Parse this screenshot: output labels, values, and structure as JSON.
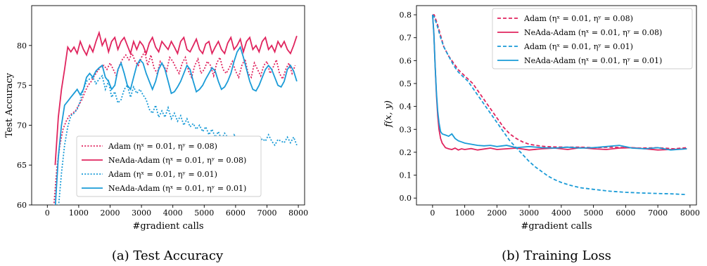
{
  "colors": {
    "adam_large": "#e0245e",
    "adam_small": "#1a9bd7"
  },
  "chart_data": [
    {
      "type": "line",
      "caption": "(a) Test Accuracy",
      "xlabel": "#gradient calls",
      "ylabel": "Test Accuracy",
      "xlim": [
        -500,
        8200
      ],
      "ylim": [
        60,
        85
      ],
      "xticks": [
        0,
        1000,
        2000,
        3000,
        4000,
        5000,
        6000,
        7000,
        8000
      ],
      "yticks": [
        60,
        65,
        70,
        75,
        80
      ],
      "grid": false,
      "legend_position": "lower-right",
      "series": [
        {
          "name": "Adam (ηˣ = 0.01, ηʸ = 0.08)",
          "color": "#e0245e",
          "dash": "dotted",
          "x": [
            200,
            300,
            400,
            500,
            600,
            700,
            800,
            900,
            1000,
            1100,
            1200,
            1300,
            1400,
            1500,
            1600,
            1700,
            1800,
            1900,
            2000,
            2100,
            2200,
            2300,
            2400,
            2500,
            2600,
            2700,
            2800,
            2900,
            3000,
            3100,
            3200,
            3300,
            3400,
            3500,
            3600,
            3700,
            3800,
            3900,
            4000,
            4100,
            4200,
            4300,
            4400,
            4500,
            4600,
            4700,
            4800,
            4900,
            5000,
            5100,
            5200,
            5300,
            5400,
            5500,
            5600,
            5700,
            5800,
            5900,
            6000,
            6100,
            6200,
            6300,
            6400,
            6500,
            6600,
            6700,
            6800,
            6900,
            7000,
            7100,
            7200,
            7300,
            7400,
            7500,
            7600,
            7700,
            7800,
            7900
          ],
          "y": [
            59.5,
            64.5,
            67.5,
            69.5,
            70.5,
            71.2,
            71.5,
            71.8,
            72.5,
            73.2,
            74.2,
            75.0,
            75.5,
            76.2,
            76.8,
            77.3,
            77.5,
            77.0,
            77.8,
            77.0,
            76.2,
            77.5,
            78.3,
            78.8,
            78.2,
            79.0,
            78.0,
            77.5,
            78.5,
            79.2,
            77.5,
            78.8,
            77.2,
            76.5,
            78.0,
            77.5,
            76.8,
            78.5,
            78.0,
            77.2,
            76.5,
            77.8,
            78.5,
            76.8,
            76.0,
            77.5,
            78.3,
            76.5,
            77.0,
            78.0,
            77.5,
            76.2,
            77.8,
            78.5,
            77.0,
            76.5,
            77.2,
            78.0,
            76.8,
            76.0,
            77.5,
            78.3,
            76.5,
            76.0,
            77.8,
            77.0,
            76.2,
            77.5,
            78.0,
            76.5,
            77.3,
            78.2,
            76.5,
            75.8,
            77.0,
            77.8,
            76.5,
            77.5
          ]
        },
        {
          "name": "NeAda-Adam (ηˣ = 0.01, ηʸ = 0.08)",
          "color": "#e0245e",
          "dash": "solid",
          "x": [
            250,
            350,
            450,
            550,
            650,
            750,
            850,
            950,
            1050,
            1150,
            1250,
            1350,
            1450,
            1550,
            1650,
            1750,
            1850,
            1950,
            2050,
            2150,
            2250,
            2350,
            2450,
            2550,
            2650,
            2750,
            2850,
            2950,
            3050,
            3150,
            3250,
            3350,
            3450,
            3550,
            3650,
            3750,
            3850,
            3950,
            4050,
            4150,
            4250,
            4350,
            4450,
            4550,
            4650,
            4750,
            4850,
            4950,
            5050,
            5150,
            5250,
            5350,
            5450,
            5550,
            5650,
            5750,
            5850,
            5950,
            6050,
            6150,
            6250,
            6350,
            6450,
            6550,
            6650,
            6750,
            6850,
            6950,
            7050,
            7150,
            7250,
            7350,
            7450,
            7550,
            7650,
            7750,
            7850,
            7950
          ],
          "y": [
            65.0,
            71.0,
            74.5,
            77.0,
            79.8,
            79.2,
            79.8,
            79.0,
            80.5,
            79.5,
            78.8,
            80.0,
            79.2,
            80.5,
            81.6,
            80.0,
            80.8,
            79.2,
            80.5,
            81.0,
            79.5,
            80.5,
            81.0,
            80.0,
            79.0,
            80.5,
            79.5,
            80.5,
            80.0,
            79.0,
            80.3,
            81.0,
            79.8,
            79.2,
            80.5,
            80.0,
            79.5,
            80.5,
            79.8,
            79.0,
            80.5,
            81.0,
            79.5,
            79.2,
            80.0,
            80.8,
            79.5,
            79.0,
            80.2,
            80.5,
            79.0,
            79.8,
            80.5,
            79.5,
            79.0,
            80.3,
            81.0,
            79.5,
            80.0,
            80.8,
            79.2,
            80.5,
            81.0,
            79.5,
            80.0,
            79.2,
            80.5,
            81.0,
            79.5,
            80.0,
            79.2,
            80.5,
            79.8,
            80.5,
            79.5,
            79.0,
            80.0,
            81.2
          ]
        },
        {
          "name": "Adam (ηˣ = 0.01, ηʸ = 0.01)",
          "color": "#1a9bd7",
          "dash": "dotted",
          "x": [
            350,
            450,
            550,
            650,
            750,
            850,
            950,
            1050,
            1150,
            1250,
            1350,
            1450,
            1550,
            1650,
            1750,
            1850,
            1950,
            2050,
            2150,
            2250,
            2350,
            2450,
            2550,
            2650,
            2750,
            2850,
            2950,
            3050,
            3150,
            3250,
            3350,
            3450,
            3550,
            3650,
            3750,
            3850,
            3950,
            4050,
            4150,
            4250,
            4350,
            4450,
            4550,
            4650,
            4750,
            4850,
            4950,
            5050,
            5150,
            5250,
            5350,
            5450,
            5550,
            5650,
            5750,
            5850,
            5950,
            6050,
            6150,
            6250,
            6350,
            6450,
            6550,
            6650,
            6750,
            6850,
            6950,
            7050,
            7150,
            7250,
            7350,
            7450,
            7550,
            7650,
            7750,
            7850,
            7950
          ],
          "y": [
            59.5,
            64.0,
            67.5,
            69.8,
            71.2,
            71.5,
            72.0,
            73.0,
            74.5,
            75.5,
            75.8,
            76.0,
            75.2,
            75.8,
            76.2,
            74.5,
            75.5,
            73.5,
            74.2,
            72.8,
            73.2,
            74.5,
            75.0,
            73.5,
            74.8,
            74.0,
            74.5,
            73.8,
            73.2,
            72.0,
            71.5,
            72.5,
            71.0,
            71.8,
            71.0,
            72.2,
            70.8,
            71.5,
            70.5,
            71.2,
            70.0,
            70.8,
            69.8,
            70.2,
            69.5,
            70.0,
            69.2,
            69.8,
            68.8,
            69.5,
            68.5,
            69.2,
            68.2,
            69.0,
            68.5,
            68.0,
            68.8,
            68.2,
            68.0,
            68.5,
            68.2,
            67.8,
            68.5,
            68.2,
            67.8,
            68.3,
            68.0,
            68.8,
            68.0,
            67.5,
            68.2,
            68.0,
            67.8,
            68.5,
            67.8,
            68.5,
            67.5
          ]
        },
        {
          "name": "NeAda-Adam (ηˣ = 0.01, ηʸ = 0.01)",
          "color": "#1a9bd7",
          "dash": "solid",
          "x": [
            250,
            350,
            450,
            550,
            650,
            750,
            850,
            950,
            1050,
            1150,
            1250,
            1350,
            1450,
            1550,
            1650,
            1750,
            1850,
            1950,
            2050,
            2150,
            2250,
            2350,
            2450,
            2550,
            2650,
            2750,
            2850,
            2950,
            3050,
            3150,
            3250,
            3350,
            3450,
            3550,
            3650,
            3750,
            3850,
            3950,
            4050,
            4150,
            4250,
            4350,
            4450,
            4550,
            4650,
            4750,
            4850,
            4950,
            5050,
            5150,
            5250,
            5350,
            5450,
            5550,
            5650,
            5750,
            5850,
            5950,
            6050,
            6150,
            6250,
            6350,
            6450,
            6550,
            6650,
            6750,
            6850,
            6950,
            7050,
            7150,
            7250,
            7350,
            7450,
            7550,
            7650,
            7750,
            7850,
            7950
          ],
          "y": [
            59.5,
            66.0,
            70.0,
            72.5,
            73.0,
            73.5,
            74.0,
            74.5,
            73.8,
            74.5,
            76.0,
            76.5,
            76.0,
            76.8,
            77.2,
            77.5,
            76.0,
            75.5,
            74.5,
            75.0,
            77.0,
            77.8,
            76.5,
            75.0,
            74.5,
            76.0,
            77.5,
            78.2,
            77.8,
            76.5,
            75.5,
            74.5,
            75.5,
            77.0,
            77.8,
            77.0,
            75.5,
            74.0,
            74.2,
            74.8,
            75.5,
            76.5,
            77.5,
            77.0,
            75.5,
            74.2,
            74.5,
            75.0,
            75.8,
            76.5,
            77.2,
            76.8,
            75.5,
            74.5,
            74.8,
            75.5,
            76.5,
            78.0,
            79.2,
            79.8,
            78.5,
            77.0,
            75.5,
            74.5,
            74.3,
            75.0,
            76.0,
            77.0,
            77.5,
            77.0,
            76.0,
            75.0,
            74.8,
            75.5,
            77.0,
            77.5,
            76.8,
            75.5
          ]
        }
      ]
    },
    {
      "type": "line",
      "caption": "(b) Training Loss",
      "xlabel": "#gradient calls",
      "ylabel": "f(x, y)",
      "xlim": [
        -500,
        8200
      ],
      "ylim": [
        -0.03,
        0.84
      ],
      "xticks": [
        0,
        1000,
        2000,
        3000,
        4000,
        5000,
        6000,
        7000,
        8000
      ],
      "yticks": [
        0.0,
        0.1,
        0.2,
        0.3,
        0.4,
        0.5,
        0.6,
        0.7,
        0.8
      ],
      "grid": false,
      "legend_position": "top-right",
      "series": [
        {
          "name": "Adam (ηˣ = 0.01, ηʸ = 0.08)",
          "color": "#e0245e",
          "dash": "dashed",
          "x": [
            0,
            50,
            150,
            250,
            350,
            500,
            650,
            800,
            950,
            1100,
            1250,
            1400,
            1550,
            1700,
            1850,
            2000,
            2200,
            2400,
            2600,
            2800,
            3000,
            3200,
            3500,
            3800,
            4200,
            4600,
            5000,
            5500,
            6000,
            6500,
            7000,
            7500,
            7900
          ],
          "y": [
            0.8,
            0.8,
            0.76,
            0.71,
            0.66,
            0.62,
            0.59,
            0.56,
            0.54,
            0.52,
            0.5,
            0.47,
            0.44,
            0.41,
            0.38,
            0.35,
            0.31,
            0.28,
            0.26,
            0.245,
            0.235,
            0.23,
            0.225,
            0.223,
            0.222,
            0.222,
            0.22,
            0.222,
            0.22,
            0.218,
            0.22,
            0.215,
            0.22
          ]
        },
        {
          "name": "NeAda-Adam (ηˣ = 0.01, ηʸ = 0.08)",
          "color": "#e0245e",
          "dash": "solid",
          "x": [
            0,
            40,
            80,
            120,
            160,
            200,
            250,
            300,
            350,
            400,
            500,
            600,
            700,
            800,
            900,
            1000,
            1200,
            1400,
            1600,
            1800,
            2000,
            2300,
            2600,
            3000,
            3400,
            3800,
            4200,
            4600,
            5000,
            5400,
            5800,
            6200,
            6600,
            7000,
            7400,
            7900
          ],
          "y": [
            0.8,
            0.72,
            0.58,
            0.45,
            0.36,
            0.3,
            0.26,
            0.24,
            0.23,
            0.22,
            0.215,
            0.212,
            0.218,
            0.21,
            0.215,
            0.212,
            0.216,
            0.21,
            0.214,
            0.218,
            0.212,
            0.215,
            0.218,
            0.21,
            0.215,
            0.218,
            0.212,
            0.22,
            0.215,
            0.212,
            0.218,
            0.22,
            0.215,
            0.21,
            0.212,
            0.215
          ]
        },
        {
          "name": "Adam (ηˣ = 0.01, ηʸ = 0.01)",
          "color": "#1a9bd7",
          "dash": "dashed",
          "x": [
            0,
            50,
            150,
            250,
            350,
            500,
            650,
            800,
            950,
            1100,
            1250,
            1400,
            1550,
            1700,
            1850,
            2000,
            2200,
            2400,
            2600,
            2800,
            3000,
            3200,
            3400,
            3600,
            3800,
            4000,
            4300,
            4600,
            5000,
            5500,
            6000,
            6500,
            7000,
            7500,
            7900
          ],
          "y": [
            0.8,
            0.79,
            0.75,
            0.7,
            0.66,
            0.62,
            0.58,
            0.55,
            0.53,
            0.51,
            0.48,
            0.45,
            0.42,
            0.39,
            0.36,
            0.33,
            0.29,
            0.25,
            0.22,
            0.19,
            0.16,
            0.135,
            0.115,
            0.095,
            0.08,
            0.068,
            0.055,
            0.045,
            0.038,
            0.03,
            0.025,
            0.022,
            0.02,
            0.018,
            0.015
          ]
        },
        {
          "name": "NeAda-Adam (ηˣ = 0.01, ηʸ = 0.01)",
          "color": "#1a9bd7",
          "dash": "solid",
          "x": [
            0,
            40,
            80,
            120,
            160,
            200,
            250,
            300,
            400,
            500,
            600,
            700,
            800,
            900,
            1000,
            1200,
            1400,
            1600,
            1800,
            2000,
            2300,
            2600,
            3000,
            3400,
            3800,
            4200,
            4600,
            5000,
            5400,
            5800,
            6200,
            6600,
            7000,
            7400,
            7900
          ],
          "y": [
            0.8,
            0.72,
            0.58,
            0.46,
            0.38,
            0.33,
            0.29,
            0.28,
            0.275,
            0.27,
            0.28,
            0.26,
            0.25,
            0.245,
            0.24,
            0.235,
            0.23,
            0.228,
            0.23,
            0.225,
            0.23,
            0.22,
            0.225,
            0.22,
            0.218,
            0.222,
            0.218,
            0.22,
            0.225,
            0.23,
            0.218,
            0.215,
            0.22,
            0.21,
            0.215
          ]
        }
      ]
    }
  ]
}
